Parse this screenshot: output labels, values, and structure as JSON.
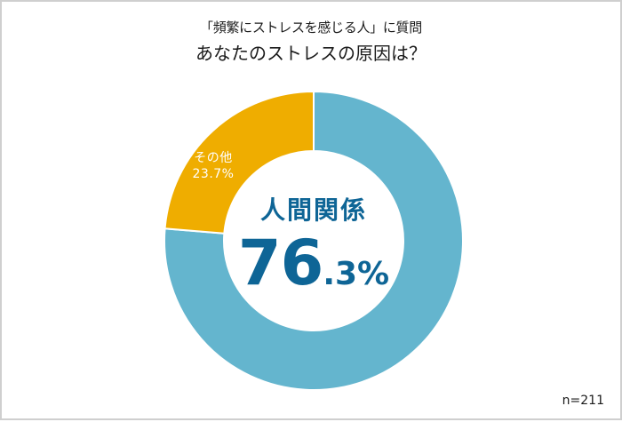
{
  "header": {
    "subtitle": "「頻繁にストレスを感じる人」に質問",
    "title": "あなたのストレスの原因は？"
  },
  "center": {
    "category": "人間関係",
    "value_int": "76",
    "value_frac": ".3%"
  },
  "segments": [
    {
      "label": "人間関係",
      "value_label": "76.3%",
      "color": "#64b5ce"
    },
    {
      "label": "その他",
      "value_label": "23.7%",
      "color": "#efad00"
    }
  ],
  "footer": {
    "sample": "n=211"
  },
  "chart_data": {
    "type": "pie",
    "variant": "donut",
    "title": "あなたのストレスの原因は？",
    "subtitle": "「頻繁にストレスを感じる人」に質問",
    "categories": [
      "人間関係",
      "その他"
    ],
    "values": [
      76.3,
      23.7
    ],
    "unit": "%",
    "colors": [
      "#64b5ce",
      "#efad00"
    ],
    "annotations": [
      "n=211"
    ],
    "start_angle": "12 o'clock, clockwise",
    "legend": "none (labels on chart)"
  }
}
